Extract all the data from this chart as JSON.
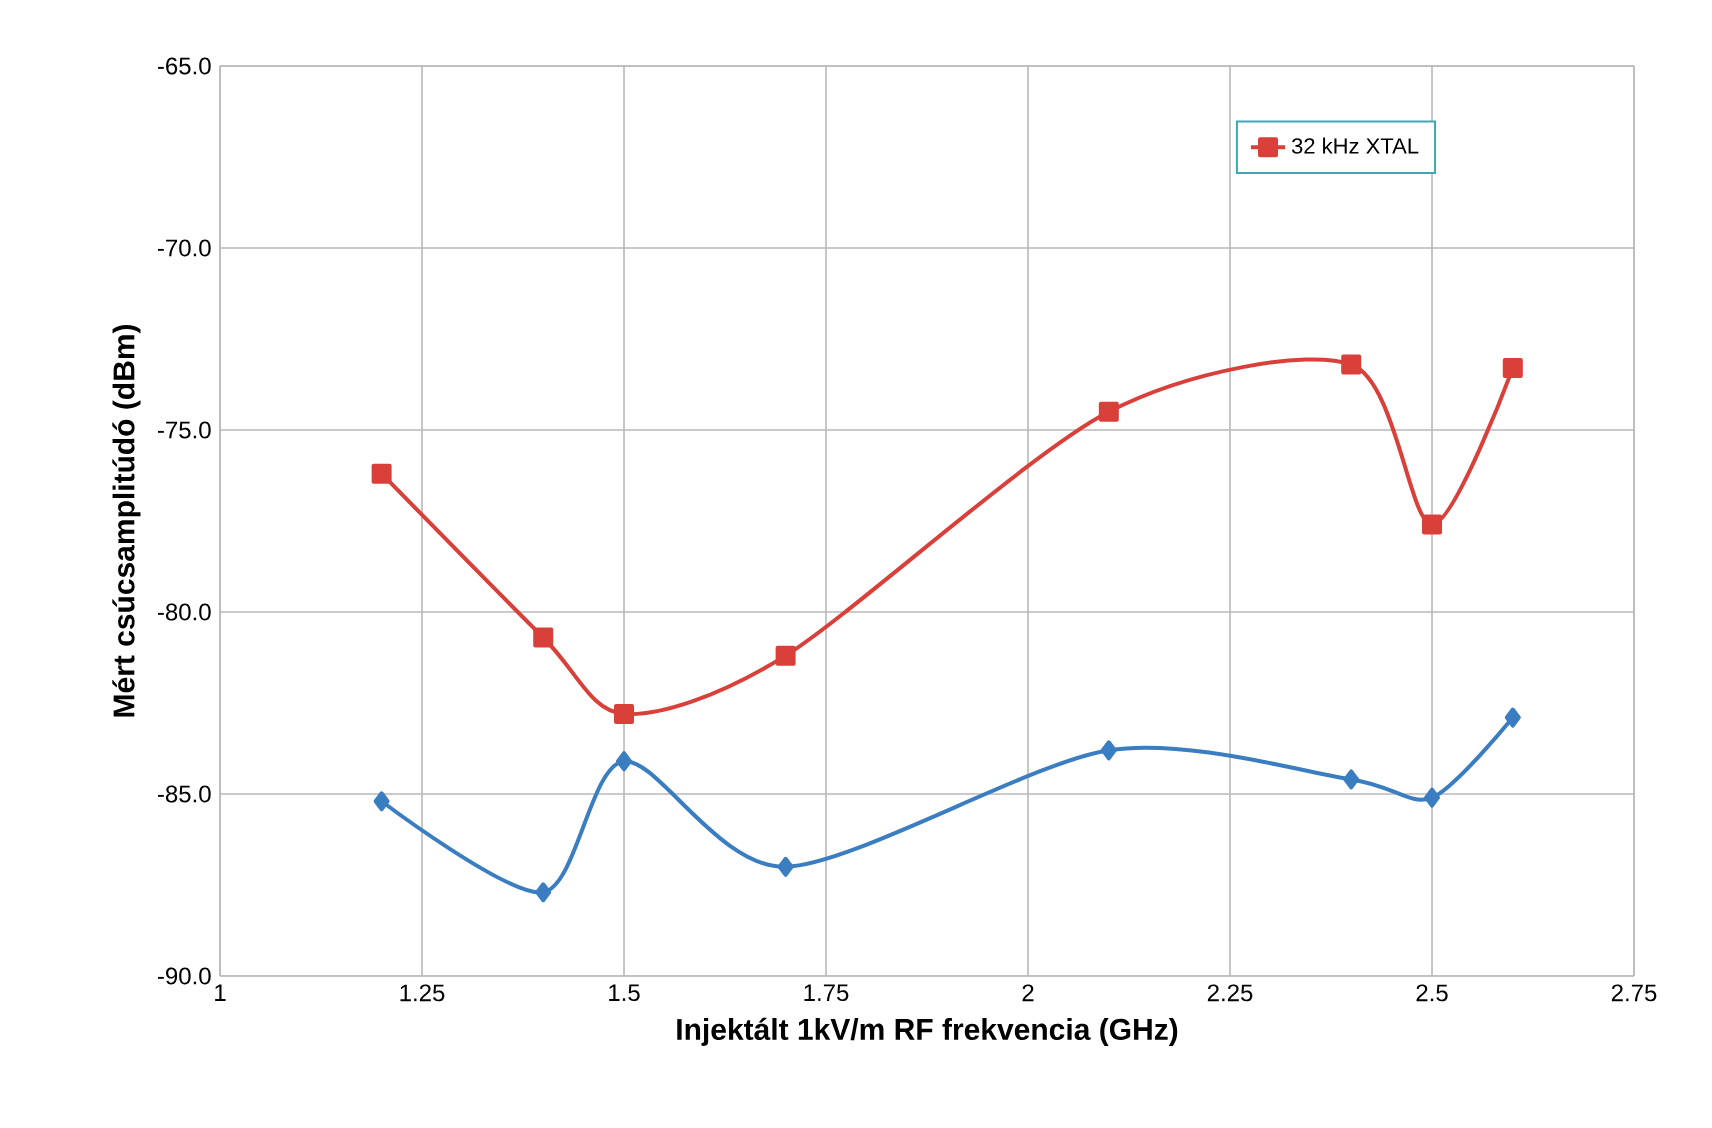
{
  "chart_data": {
    "type": "line",
    "xlabel": "Injektált 1kV/m RF frekvencia (GHz)",
    "ylabel": "Mért csúcsamplitúdó (dBm)",
    "xlim": [
      1,
      2.75
    ],
    "xticks": [
      1,
      1.25,
      1.5,
      1.75,
      2,
      2.25,
      2.5,
      2.75
    ],
    "ylim": [
      -90,
      -65
    ],
    "yticks": [
      {
        "value": -90,
        "label": "-90.0"
      },
      {
        "value": -85,
        "label": "-85.0"
      },
      {
        "value": -80,
        "label": "-80.0"
      },
      {
        "value": -75,
        "label": "-75.0"
      },
      {
        "value": -70,
        "label": "-70.0"
      },
      {
        "value": -65,
        "label": "-65.0"
      }
    ],
    "grid": true,
    "legend": "top right",
    "series": [
      {
        "color": "#3a7dc0",
        "marker": "diamond",
        "x": [
          1.2,
          1.4,
          1.5,
          1.7,
          2.1,
          2.4,
          2.5,
          2.6
        ],
        "values": [
          -85.2,
          -87.7,
          -84.1,
          -87.0,
          -83.8,
          -84.6,
          -85.1,
          -82.9
        ]
      },
      {
        "name": "32 kHz XTAL",
        "color": "#d9403a",
        "marker": "square",
        "x": [
          1.2,
          1.4,
          1.5,
          1.7,
          2.1,
          2.4,
          2.5,
          2.6
        ],
        "values": [
          -76.2,
          -80.7,
          -82.8,
          -81.2,
          -74.5,
          -73.2,
          -77.6,
          -73.3
        ]
      }
    ]
  }
}
